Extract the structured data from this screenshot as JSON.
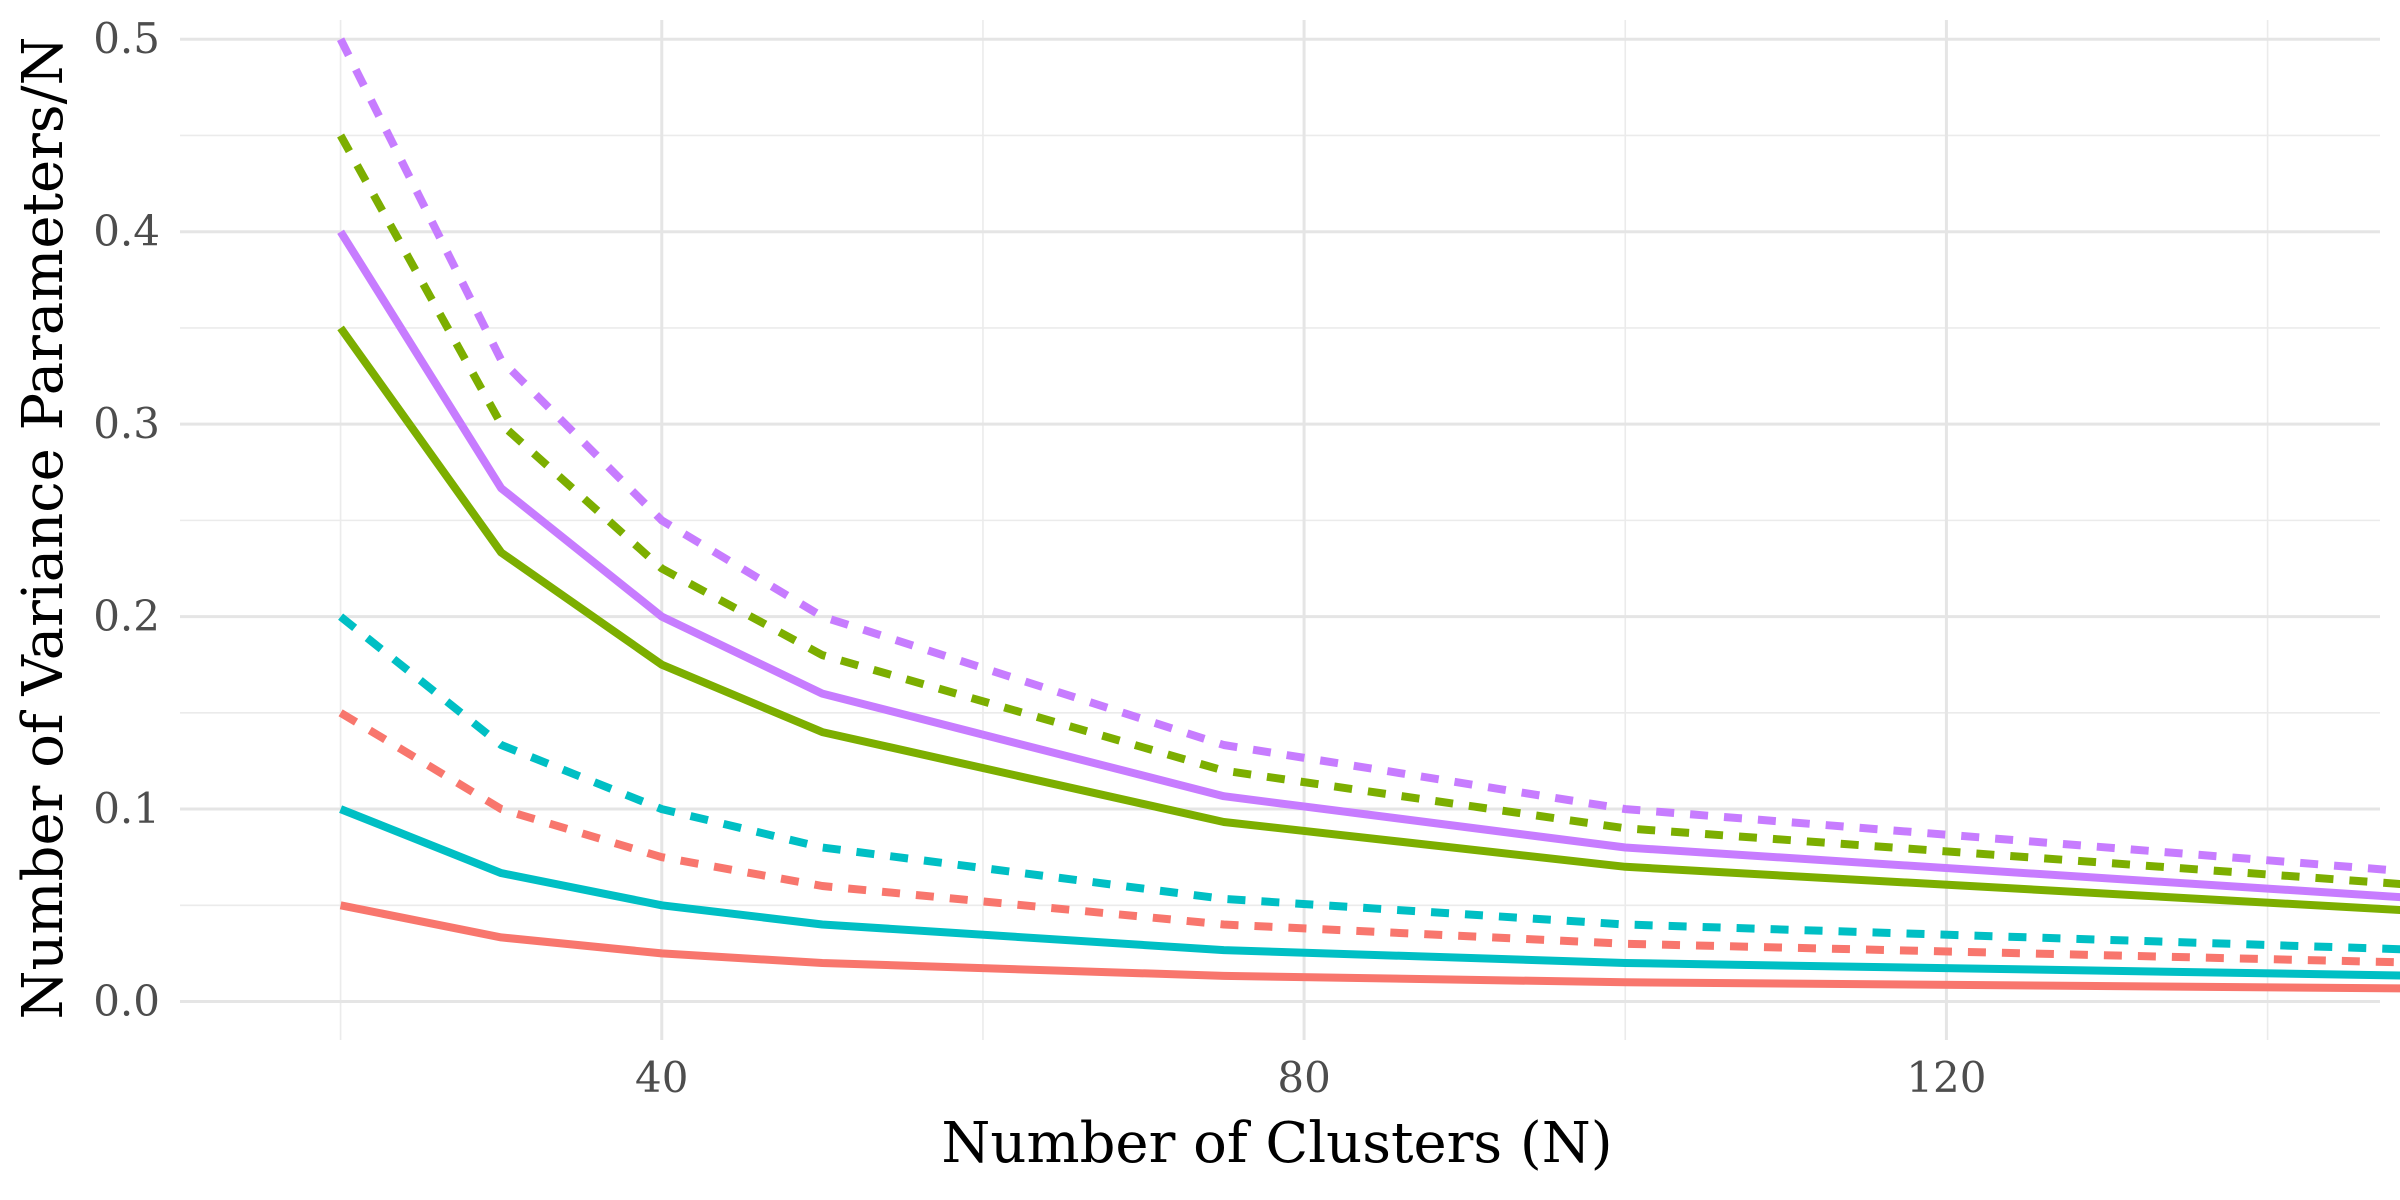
{
  "chart_data": {
    "type": "line",
    "xlabel": "Number of Clusters (N)",
    "ylabel": "Number of Variance Parameters/N",
    "xlim": [
      10,
      147
    ],
    "ylim": [
      -0.02,
      0.51
    ],
    "x_major_ticks": [
      40,
      80,
      120
    ],
    "x_minor_ticks": [
      20,
      60,
      100,
      140
    ],
    "y_major_ticks": [
      0.0,
      0.1,
      0.2,
      0.3,
      0.4,
      0.5
    ],
    "y_tick_labels": [
      "0.0",
      "0.1",
      "0.2",
      "0.3",
      "0.4",
      "0.5"
    ],
    "x_tick_labels": [
      "40",
      "80",
      "120"
    ],
    "grid": true,
    "legend": "none",
    "x": [
      20,
      30,
      40,
      50,
      75,
      100,
      150
    ],
    "series": [
      {
        "color": "#F8766D",
        "dash": "solid",
        "values": [
          0.05,
          0.0333,
          0.025,
          0.02,
          0.0133,
          0.01,
          0.0067
        ]
      },
      {
        "color": "#F8766D",
        "dash": "dashed",
        "values": [
          0.15,
          0.1,
          0.075,
          0.06,
          0.04,
          0.03,
          0.02
        ]
      },
      {
        "color": "#00BFC4",
        "dash": "solid",
        "values": [
          0.1,
          0.0667,
          0.05,
          0.04,
          0.0267,
          0.02,
          0.0133
        ]
      },
      {
        "color": "#00BFC4",
        "dash": "dashed",
        "values": [
          0.2,
          0.1333,
          0.1,
          0.08,
          0.0533,
          0.04,
          0.0267
        ]
      },
      {
        "color": "#7CAE00",
        "dash": "solid",
        "values": [
          0.35,
          0.2333,
          0.175,
          0.14,
          0.0933,
          0.07,
          0.0467
        ]
      },
      {
        "color": "#7CAE00",
        "dash": "dashed",
        "values": [
          0.45,
          0.3,
          0.225,
          0.18,
          0.12,
          0.09,
          0.06
        ]
      },
      {
        "color": "#C77CFF",
        "dash": "solid",
        "values": [
          0.4,
          0.2667,
          0.2,
          0.16,
          0.1067,
          0.08,
          0.0533
        ]
      },
      {
        "color": "#C77CFF",
        "dash": "dashed",
        "values": [
          0.5,
          0.3333,
          0.25,
          0.2,
          0.1333,
          0.1,
          0.0667
        ]
      }
    ]
  }
}
